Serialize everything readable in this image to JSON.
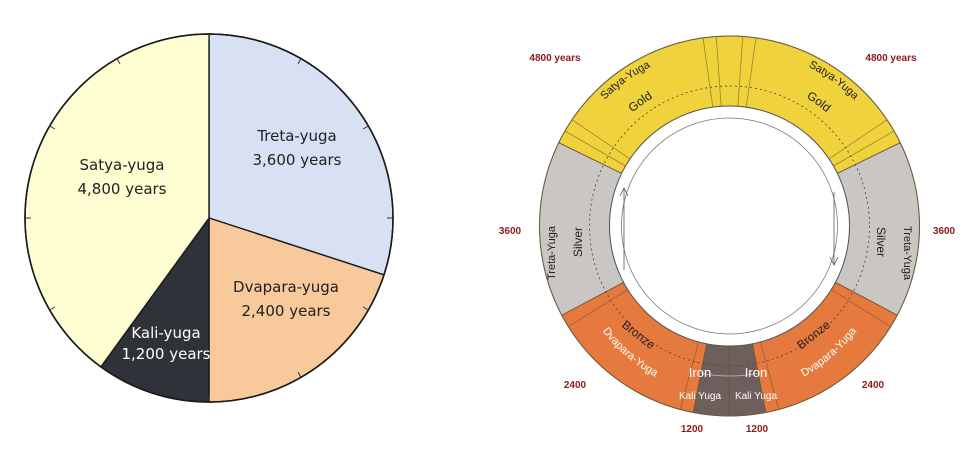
{
  "colors": {
    "satya": "#fefed2",
    "treta": "#d7e1f3",
    "dvapara": "#f8c99a",
    "kali": "#2f3238",
    "outline": "#1a1a1a",
    "ring_gold": "#efd23c",
    "ring_silver": "#c9c6c4",
    "ring_bronze": "#e67a3e",
    "ring_iron": "#6e5f5d",
    "years_text": "#8b1a1a"
  },
  "pie": {
    "slices": [
      {
        "key": "treta",
        "name": "Treta-yuga",
        "years": "3,600 years",
        "value": 3600
      },
      {
        "key": "dvapara",
        "name": "Dvapara-yuga",
        "years": "2,400 years",
        "value": 2400
      },
      {
        "key": "kali",
        "name": "Kali-yuga",
        "years": "1,200 years",
        "value": 1200
      },
      {
        "key": "satya",
        "name": "Satya-yuga",
        "years": "4,800 years",
        "value": 4800
      }
    ]
  },
  "ring": {
    "satya": {
      "name": "Satya-Yuga",
      "metal": "Gold",
      "years": "4800 years"
    },
    "treta": {
      "name": "Treta-Yuga",
      "metal": "Silver",
      "years": "3600"
    },
    "dvapara": {
      "name": "Dvapara-Yuga",
      "metal": "Bronze",
      "years": "2400"
    },
    "kali": {
      "name": "Kali Yuga",
      "metal": "Iron",
      "years": "1200"
    }
  }
}
